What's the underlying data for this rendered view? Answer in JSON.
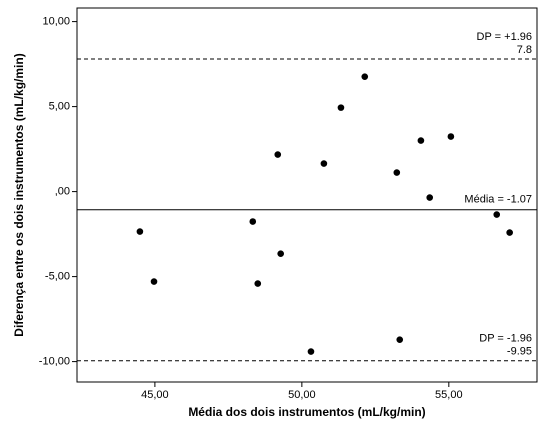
{
  "chart_data": {
    "type": "scatter",
    "x_label": "Média dos dois instrumentos (mL/kg/min)",
    "y_label": "Diferença entre os dois instrumentos (mL/kg/min)",
    "xlim": [
      42.35,
      58.0
    ],
    "ylim": [
      -11.2,
      10.8
    ],
    "xticks": [
      {
        "value": 45,
        "label": "45,00"
      },
      {
        "value": 50,
        "label": "50,00"
      },
      {
        "value": 55,
        "label": "55,00"
      }
    ],
    "yticks": [
      {
        "value": 10,
        "label": "10,00"
      },
      {
        "value": 5,
        "label": "5,00"
      },
      {
        "value": 0,
        "label": ",00"
      },
      {
        "value": -5,
        "label": "-5,00"
      },
      {
        "value": -10,
        "label": "-10,00"
      }
    ],
    "color": "#000000",
    "x": [
      44.49,
      44.97,
      48.33,
      49.18,
      49.28,
      48.5,
      50.31,
      50.75,
      51.33,
      52.14,
      53.23,
      53.33,
      54.05,
      54.35,
      55.07,
      56.63,
      57.07
    ],
    "values": [
      -2.35,
      -5.29,
      -1.76,
      2.18,
      -3.65,
      -5.41,
      -9.41,
      1.65,
      4.94,
      6.76,
      1.12,
      -8.71,
      3.0,
      -0.35,
      3.24,
      -1.35,
      -2.41
    ],
    "reference_lines": [
      {
        "value": 7.8,
        "name": "DP = +1.96",
        "label": "7.8",
        "style": "dashed"
      },
      {
        "value": -1.07,
        "name": "Média = -1.07",
        "style": "solid"
      },
      {
        "value": -9.95,
        "name": "DP = -1.96",
        "label": "-9.95",
        "style": "dashed"
      }
    ]
  }
}
